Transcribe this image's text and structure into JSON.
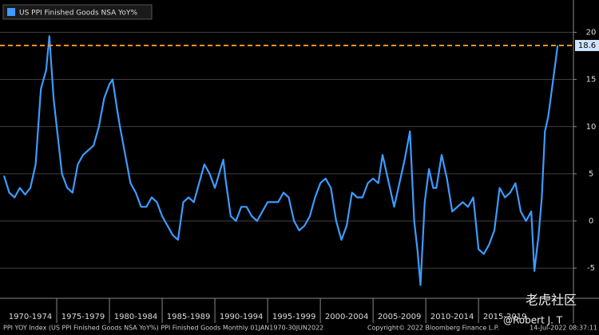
{
  "chart_data": {
    "type": "line",
    "legend": "US PPI Finished Goods NSA YoY%",
    "x": [
      1970.0,
      1970.5,
      1971.0,
      1971.5,
      1972.0,
      1972.5,
      1973.0,
      1973.5,
      1974.0,
      1974.3,
      1974.7,
      1975.0,
      1975.5,
      1976.0,
      1976.5,
      1977.0,
      1977.5,
      1978.0,
      1978.5,
      1979.0,
      1979.5,
      1980.0,
      1980.3,
      1980.7,
      1981.0,
      1981.5,
      1982.0,
      1982.5,
      1983.0,
      1983.5,
      1984.0,
      1984.5,
      1985.0,
      1985.5,
      1986.0,
      1986.5,
      1987.0,
      1987.5,
      1988.0,
      1988.5,
      1989.0,
      1989.5,
      1990.0,
      1990.8,
      1991.0,
      1991.5,
      1992.0,
      1992.5,
      1993.0,
      1993.5,
      1994.0,
      1994.5,
      1995.0,
      1995.5,
      1996.0,
      1996.5,
      1997.0,
      1997.5,
      1998.0,
      1998.5,
      1999.0,
      1999.5,
      2000.0,
      2000.5,
      2001.0,
      2001.5,
      2002.0,
      2002.5,
      2003.0,
      2003.5,
      2004.0,
      2004.5,
      2005.0,
      2005.5,
      2005.9,
      2006.5,
      2007.0,
      2007.5,
      2008.0,
      2008.5,
      2008.9,
      2009.2,
      2009.5,
      2009.9,
      2010.3,
      2010.7,
      2011.0,
      2011.5,
      2012.0,
      2012.5,
      2013.0,
      2013.5,
      2014.0,
      2014.5,
      2015.0,
      2015.5,
      2016.0,
      2016.5,
      2017.0,
      2017.5,
      2018.0,
      2018.5,
      2019.0,
      2019.5,
      2020.0,
      2020.3,
      2020.7,
      2021.0,
      2021.3,
      2021.6,
      2021.9,
      2022.2,
      2022.5
    ],
    "series": [
      {
        "name": "US PPI Finished Goods NSA YoY%",
        "color": "#3d9bff",
        "values": [
          4.8,
          3,
          2.5,
          3.5,
          2.8,
          3.5,
          6,
          14,
          16,
          19.6,
          13,
          10,
          5,
          3.5,
          3,
          6,
          7,
          7.5,
          8,
          10,
          13,
          14.5,
          15,
          12,
          10,
          7,
          4,
          3,
          1.5,
          1.5,
          2.5,
          2,
          0.5,
          -0.5,
          -1.5,
          -2,
          2,
          2.5,
          2,
          4,
          6,
          5,
          3.5,
          6.5,
          4.5,
          0.5,
          0,
          1.5,
          1.5,
          0.5,
          0,
          1,
          2,
          2,
          2,
          3,
          2.5,
          0,
          -1,
          -0.5,
          0.5,
          2.5,
          4,
          4.5,
          3.5,
          0,
          -2,
          -0.5,
          3,
          2.5,
          2.5,
          4,
          4.5,
          4,
          7,
          4,
          1.5,
          4,
          6.5,
          9.5,
          0,
          -3,
          -6.8,
          2,
          5.5,
          3.5,
          3.5,
          7,
          4.5,
          1,
          1.5,
          2,
          1.5,
          2.5,
          -3,
          -3.5,
          -2.5,
          -1,
          3.5,
          2.5,
          3,
          4,
          1,
          0,
          1,
          -5.3,
          -1.5,
          2.5,
          9.5,
          11,
          13.5,
          16,
          18.6
        ]
      }
    ],
    "reference_line": {
      "value": 18.6,
      "color": "#f7931e"
    },
    "xlim": [
      1970,
      2024
    ],
    "xticks": [
      {
        "value": 1972.5,
        "label": "1970-1974"
      },
      {
        "value": 1977.5,
        "label": "1975-1979"
      },
      {
        "value": 1982.5,
        "label": "1980-1984"
      },
      {
        "value": 1987.5,
        "label": "1985-1989"
      },
      {
        "value": 1992.5,
        "label": "1990-1994"
      },
      {
        "value": 1997.5,
        "label": "1995-1999"
      },
      {
        "value": 2002.5,
        "label": "2000-2004"
      },
      {
        "value": 2007.5,
        "label": "2005-2009"
      },
      {
        "value": 2012.5,
        "label": "2010-2014"
      },
      {
        "value": 2017.5,
        "label": "2015-2019"
      }
    ],
    "ylim": [
      -8.2,
      23
    ],
    "yticks": [
      -5,
      0,
      5,
      10,
      15,
      20
    ],
    "grid": true,
    "footer": {
      "source": "PPI YOY Index (US PPI Finished Goods NSA YoY%) PPI Finished Goods  Monthly 01JAN1970-30JUN2022",
      "copyright": "Copyright© 2022 Bloomberg Finance L.P.",
      "timestamp": "14-Jul-2022 08:37:11"
    },
    "watermark": [
      "@Robert J. T",
      "老虎社区"
    ]
  }
}
